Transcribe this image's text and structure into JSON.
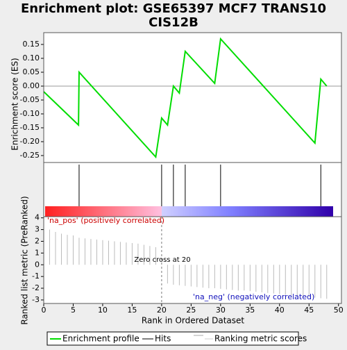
{
  "chart_data": [
    {
      "type": "line",
      "title": [
        "Enrichment plot: GSE65397 MCF7 TRANS10",
        "CIS12B"
      ],
      "ylabel": "Enrichment score (ES)",
      "xlim": [
        0,
        50.5
      ],
      "ylim": [
        -0.275,
        0.1925
      ],
      "yticks": [
        {
          "value": 0.15,
          "label": "0.15"
        },
        {
          "value": 0.1,
          "label": "0.10"
        },
        {
          "value": 0.05,
          "label": "0.05"
        },
        {
          "value": 0,
          "label": "0.00"
        },
        {
          "value": -0.05,
          "label": "-0.05"
        },
        {
          "value": -0.1,
          "label": "-0.10"
        },
        {
          "value": -0.15,
          "label": "-0.15"
        },
        {
          "value": -0.2,
          "label": "-0.20"
        },
        {
          "value": -0.25,
          "label": "-0.25"
        }
      ],
      "series": [
        {
          "name": "Enrichment profile",
          "color": "#00dd00",
          "x": [
            0,
            5.9,
            6,
            19,
            20,
            21,
            22,
            23,
            24,
            29,
            30,
            46,
            47,
            48
          ],
          "values": [
            -0.02,
            -0.14,
            0.05,
            -0.255,
            -0.115,
            -0.14,
            0,
            -0.025,
            0.125,
            0.01,
            0.17,
            -0.205,
            0.025,
            0.0
          ]
        }
      ],
      "hits": {
        "name": "Hits",
        "color": "#000000",
        "x": [
          6,
          20,
          22,
          24,
          30,
          47
        ]
      }
    },
    {
      "type": "bar",
      "xlabel": "Rank in Ordered Dataset",
      "ylabel": "Ranked list metric (PreRanked)",
      "name": "Ranking metric scores",
      "color": "#bbbbbb",
      "xlim": [
        0,
        50.5
      ],
      "ylim": [
        -3.3,
        4.1
      ],
      "xticks": [
        0,
        5,
        10,
        15,
        20,
        25,
        30,
        35,
        40,
        45,
        50
      ],
      "yticks": [
        4,
        3,
        2,
        1,
        0,
        -1,
        -2,
        -3
      ],
      "x": [
        1,
        2,
        3,
        4,
        5,
        6,
        7,
        8,
        9,
        10,
        11,
        12,
        13,
        14,
        15,
        16,
        17,
        18,
        19,
        20,
        21,
        22,
        23,
        24,
        25,
        26,
        27,
        28,
        29,
        30,
        31,
        32,
        33,
        34,
        35,
        36,
        37,
        38,
        39,
        40,
        41,
        42,
        43,
        44,
        45,
        46,
        47,
        48
      ],
      "values": [
        3.0,
        2.8,
        2.65,
        2.55,
        2.5,
        2.3,
        2.25,
        2.2,
        2.15,
        2.1,
        2.05,
        2.0,
        1.95,
        1.9,
        1.85,
        1.8,
        1.7,
        1.6,
        1.5,
        0,
        -1.6,
        -1.7,
        -1.75,
        -1.8,
        -1.85,
        -1.9,
        -1.95,
        -2.0,
        -2.0,
        -2.05,
        -2.1,
        -2.15,
        -2.2,
        -2.2,
        -2.25,
        -2.3,
        -2.35,
        -2.4,
        -2.45,
        -2.5,
        -2.55,
        -2.6,
        -2.65,
        -2.7,
        -2.75,
        -2.8,
        -2.85,
        -2.9
      ],
      "annotations": {
        "pos": "'na_pos' (positively correlated)",
        "zero": "Zero cross at 20",
        "neg": "'na_neg' (negatively correlated)"
      },
      "zero_cross": 20
    }
  ]
}
